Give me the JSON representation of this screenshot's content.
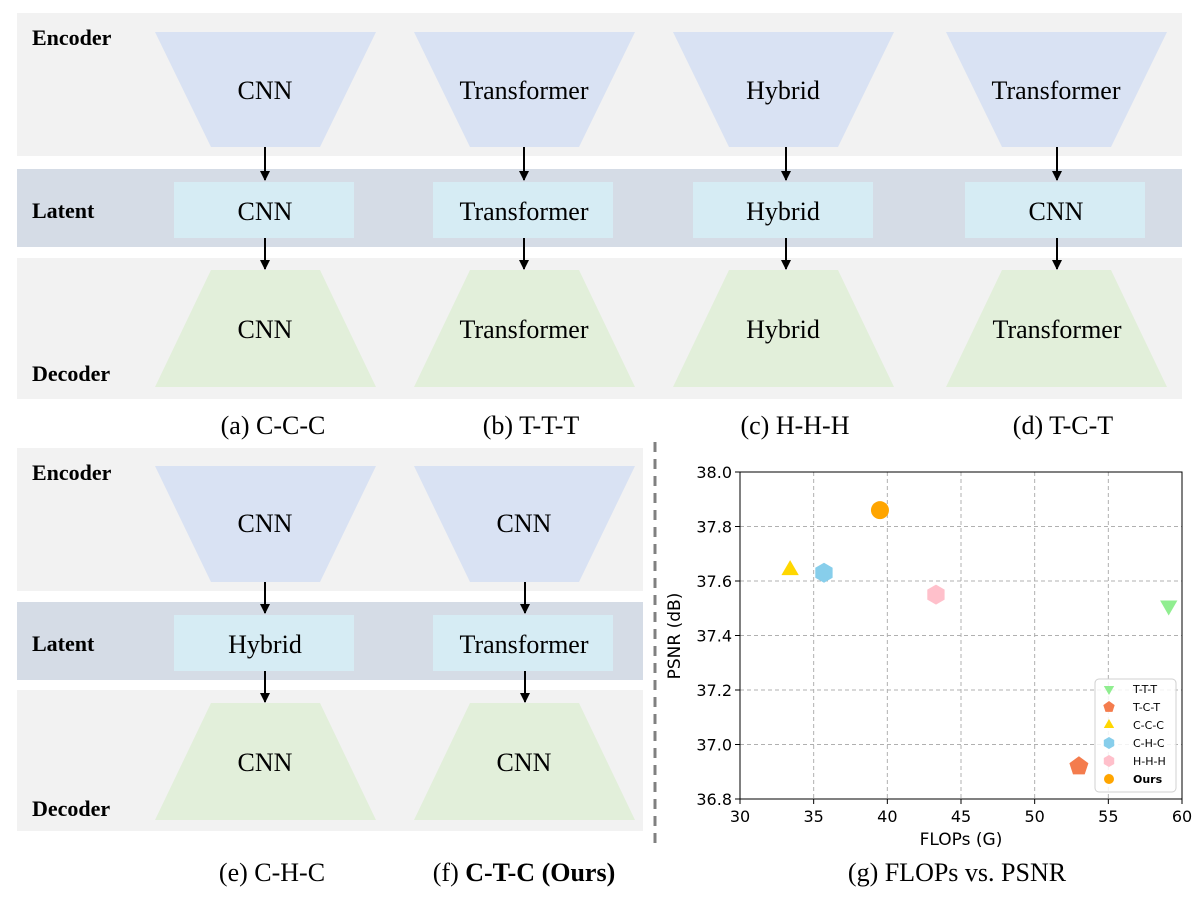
{
  "rows": {
    "encoder": "Encoder",
    "latent": "Latent",
    "decoder": "Decoder"
  },
  "top_panels": [
    {
      "encoder": "CNN",
      "latent": "CNN",
      "decoder": "CNN",
      "caption": "(a) C-C-C"
    },
    {
      "encoder": "Transformer",
      "latent": "Transformer",
      "decoder": "Transformer",
      "caption": "(b) T-T-T"
    },
    {
      "encoder": "Hybrid",
      "latent": "Hybrid",
      "decoder": "Hybrid",
      "caption": "(c) H-H-H"
    },
    {
      "encoder": "Transformer",
      "latent": "CNN",
      "decoder": "Transformer",
      "caption": "(d) T-C-T"
    }
  ],
  "bottom_panels": [
    {
      "encoder": "CNN",
      "latent": "Hybrid",
      "decoder": "CNN",
      "caption": "(e) C-H-C"
    },
    {
      "encoder": "CNN",
      "latent": "Transformer",
      "decoder": "CNN",
      "caption_prefix": "(f) ",
      "caption_bold": "C-T-C (Ours)"
    }
  ],
  "colors": {
    "encoder_shape": "#d9e2f3",
    "latent_box": "#d6ecf4",
    "latent_band": "#d5dce6",
    "decoder_shape": "#e2efda",
    "panel_bg": "#f2f2f2"
  },
  "chart_data": {
    "type": "scatter",
    "caption": "(g) FLOPs vs. PSNR",
    "xlabel": "FLOPs (G)",
    "ylabel": "PSNR (dB)",
    "xlim": [
      30,
      60
    ],
    "ylim": [
      36.8,
      38.0
    ],
    "xticks": [
      30,
      35,
      40,
      45,
      50,
      55,
      60
    ],
    "xtick_labels": [
      "30",
      "35",
      "40",
      "45",
      "50",
      "55",
      "60"
    ],
    "yticks": [
      36.8,
      37.0,
      37.2,
      37.4,
      37.6,
      37.8,
      38.0
    ],
    "ytick_labels": [
      "36.8",
      "37.0",
      "37.2",
      "37.4",
      "37.6",
      "37.8",
      "38.0"
    ],
    "grid": true,
    "legend_position": "bottom-right",
    "series": [
      {
        "name": "T-T-T",
        "x": 59.1,
        "y": 37.51,
        "marker": "triangle-down",
        "color": "#90ee90"
      },
      {
        "name": "T-C-T",
        "x": 53.0,
        "y": 36.92,
        "marker": "pentagon",
        "color": "#f47c4d"
      },
      {
        "name": "C-C-C",
        "x": 33.4,
        "y": 37.64,
        "marker": "triangle-up",
        "color": "#ffd700"
      },
      {
        "name": "C-H-C",
        "x": 35.7,
        "y": 37.63,
        "marker": "hexagon",
        "color": "#87ceeb"
      },
      {
        "name": "H-H-H",
        "x": 43.3,
        "y": 37.55,
        "marker": "hexagon",
        "color": "#ffc0cb"
      },
      {
        "name": "Ours",
        "x": 39.5,
        "y": 37.86,
        "marker": "circle",
        "color": "#ffa500",
        "bold": true
      }
    ]
  }
}
